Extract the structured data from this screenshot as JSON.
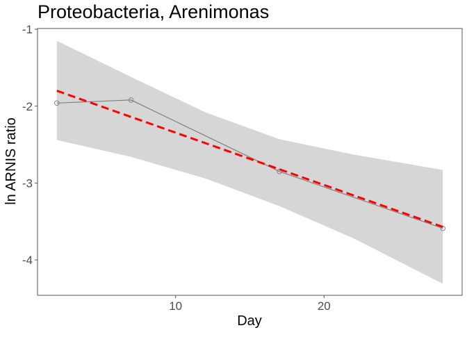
{
  "chart_data": {
    "type": "line",
    "title": "Proteobacteria, Arenimonas",
    "xlabel": "Day",
    "ylabel": "ln ARNIS ratio",
    "xlim": [
      0.7,
      29.3
    ],
    "ylim": [
      -4.46,
      -0.99
    ],
    "x_ticks": [
      10,
      20
    ],
    "x_tick_labels": [
      "10",
      "20"
    ],
    "y_ticks": [
      -1,
      -2,
      -3,
      -4
    ],
    "y_tick_labels": [
      "-1",
      "-2",
      "-3",
      "-4"
    ],
    "grid": false,
    "legend": "none",
    "series": [
      {
        "kind": "observed",
        "x": [
          2,
          7,
          17,
          28
        ],
        "y": [
          -1.96,
          -1.92,
          -2.85,
          -3.59
        ]
      }
    ],
    "fit": {
      "x": [
        2,
        28
      ],
      "y": [
        -1.8,
        -3.57
      ]
    },
    "confidence_band": {
      "x": [
        2,
        7,
        12,
        17,
        22,
        28
      ],
      "lower": [
        -2.44,
        -2.66,
        -2.94,
        -3.3,
        -3.72,
        -4.31
      ],
      "upper": [
        -1.15,
        -1.62,
        -2.08,
        -2.43,
        -2.63,
        -2.83
      ]
    },
    "colors": {
      "observed_line": "#808080",
      "observed_point": "#8a7f86",
      "fit": "#ff0000",
      "band": "#d6d6d6",
      "axis": "#555555",
      "text": "#000000",
      "tick_text": "#4d4d4d"
    }
  }
}
